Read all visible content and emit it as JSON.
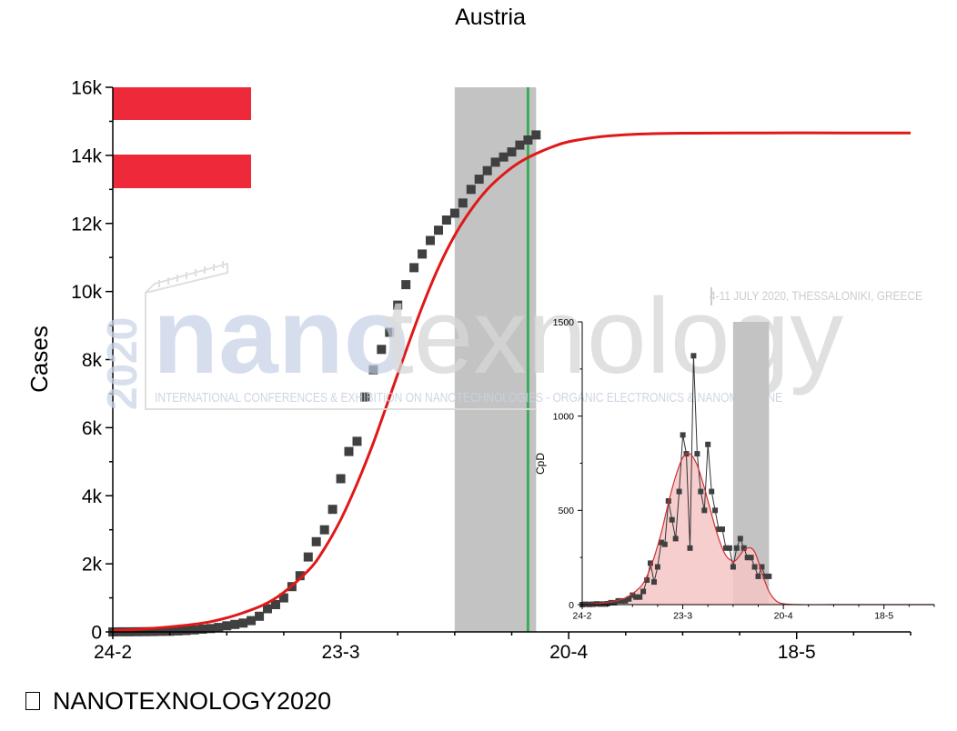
{
  "chart_data": [
    {
      "type": "scatter",
      "title": "Austria",
      "xlabel": "",
      "ylabel": "Cases",
      "x_ticks": [
        "24-2",
        "23-3",
        "20-4",
        "18-5"
      ],
      "y_ticks": [
        "0",
        "2k",
        "4k",
        "6k",
        "8k",
        "10k",
        "12k",
        "14k",
        "16k"
      ],
      "xlim": [
        0,
        98
      ],
      "ylim": [
        0,
        16000
      ],
      "grid": false,
      "shaded_band": {
        "from_day": 42,
        "to_day": 52
      },
      "vertical_line": {
        "day": 51,
        "color": "#3aaa5c"
      },
      "series": [
        {
          "kind": "points",
          "color": "#404040",
          "x": [
            0,
            1,
            2,
            3,
            4,
            5,
            6,
            7,
            8,
            9,
            10,
            11,
            12,
            13,
            14,
            15,
            16,
            17,
            18,
            19,
            20,
            21,
            22,
            23,
            24,
            25,
            26,
            27,
            28,
            29,
            30,
            31,
            32,
            33,
            34,
            35,
            36,
            37,
            38,
            39,
            40,
            41,
            42,
            43,
            44,
            45,
            46,
            47,
            48,
            49,
            50,
            51,
            52
          ],
          "y": [
            0,
            2,
            3,
            5,
            9,
            12,
            15,
            20,
            30,
            40,
            60,
            80,
            100,
            130,
            180,
            220,
            260,
            330,
            460,
            680,
            800,
            1000,
            1330,
            1650,
            2200,
            2650,
            3000,
            3600,
            4500,
            5300,
            5600,
            6900,
            7700,
            8300,
            8800,
            9600,
            10200,
            10700,
            11100,
            11500,
            11800,
            12100,
            12300,
            12600,
            13000,
            13300,
            13550,
            13800,
            13950,
            14100,
            14300,
            14450,
            14600
          ]
        },
        {
          "kind": "fit",
          "color": "#e01818",
          "x": [
            0,
            4,
            8,
            12,
            16,
            20,
            24,
            26,
            28,
            30,
            32,
            34,
            36,
            38,
            40,
            42,
            44,
            46,
            48,
            50,
            52,
            54,
            56,
            60,
            64,
            70,
            80,
            90,
            98
          ],
          "y": [
            40,
            90,
            170,
            300,
            560,
            990,
            1800,
            2450,
            3300,
            4350,
            5550,
            6900,
            8250,
            9550,
            10700,
            11650,
            12400,
            13000,
            13450,
            13800,
            14050,
            14250,
            14400,
            14550,
            14620,
            14650,
            14660,
            14660,
            14660
          ]
        }
      ],
      "flag": {
        "stripes": [
          "#ee2a3a",
          "#ffffff",
          "#ee2a3a"
        ]
      }
    },
    {
      "type": "bar",
      "title": "",
      "xlabel": "",
      "ylabel": "CpD",
      "x_ticks": [
        "24-2",
        "23-3",
        "20-4",
        "18-5"
      ],
      "y_ticks": [
        "0",
        "500",
        "1000",
        "1500"
      ],
      "xlim": [
        0,
        98
      ],
      "ylim": [
        0,
        1500
      ],
      "shaded_band": {
        "from_day": 42,
        "to_day": 52
      },
      "series": [
        {
          "kind": "points",
          "color": "#404040",
          "x": [
            0,
            1,
            2,
            3,
            4,
            5,
            6,
            7,
            8,
            9,
            10,
            11,
            12,
            13,
            14,
            15,
            16,
            17,
            18,
            19,
            20,
            21,
            22,
            23,
            24,
            25,
            26,
            27,
            28,
            29,
            30,
            31,
            32,
            33,
            34,
            35,
            36,
            37,
            38,
            39,
            40,
            41,
            42,
            43,
            44,
            45,
            46,
            47,
            48,
            49,
            50,
            51,
            52
          ],
          "y": [
            0,
            2,
            1,
            2,
            4,
            3,
            3,
            5,
            10,
            10,
            20,
            20,
            20,
            30,
            50,
            40,
            40,
            70,
            130,
            220,
            120,
            200,
            330,
            320,
            550,
            450,
            350,
            600,
            900,
            800,
            300,
            1320,
            800,
            600,
            500,
            850,
            600,
            500,
            400,
            400,
            300,
            300,
            200,
            300,
            350,
            300,
            250,
            250,
            200,
            150,
            200,
            150,
            150
          ]
        },
        {
          "kind": "fit",
          "color": "#d03030",
          "fill": "#f4c6c6",
          "x": [
            0,
            4,
            8,
            12,
            16,
            18,
            20,
            22,
            24,
            26,
            28,
            30,
            32,
            34,
            36,
            38,
            40,
            42,
            43,
            44,
            45,
            46,
            47,
            48,
            49,
            50,
            52,
            54,
            56,
            60,
            70,
            80,
            90,
            98
          ],
          "y": [
            0,
            5,
            15,
            35,
            90,
            150,
            250,
            380,
            540,
            680,
            780,
            800,
            740,
            620,
            480,
            350,
            260,
            230,
            240,
            265,
            290,
            300,
            300,
            280,
            230,
            170,
            70,
            20,
            5,
            0,
            0,
            0,
            0,
            0
          ]
        }
      ]
    }
  ],
  "watermark": {
    "year": "2020",
    "word_part1": "nano",
    "word_part2": "texnology",
    "tagline": "INTERNATIONAL CONFERENCES & EXHIBITION ON NANOTECHNOLOGIES - ORGANIC ELECTRONICS & NANOMEDICINE",
    "date_location": "4-11 JULY 2020, THESSALONIKI, GREECE"
  },
  "footer": {
    "text": "NANOTEXNOLOGY2020"
  }
}
